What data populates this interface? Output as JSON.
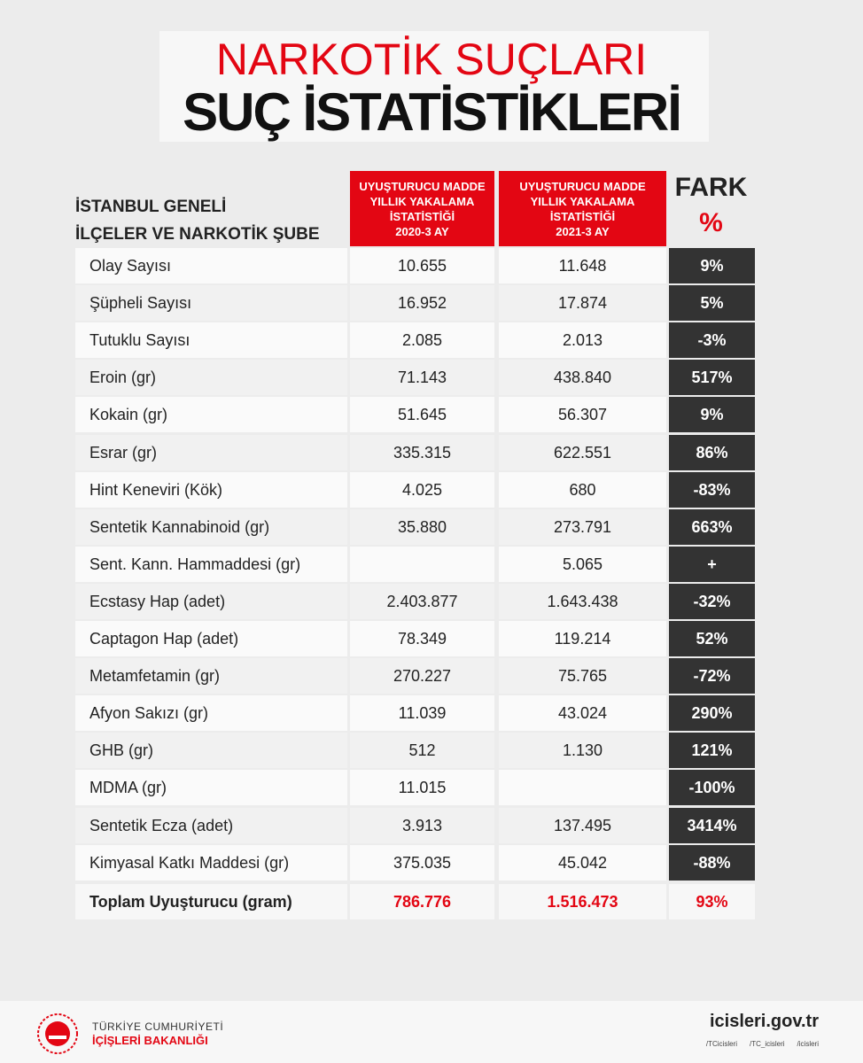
{
  "header": {
    "title": "NARKOTİK SUÇLARI",
    "subtitle": "SUÇ İSTATİSTİKLERİ"
  },
  "table": {
    "corner": [
      "İSTANBUL GENELİ",
      "İLÇELER VE NARKOTİK ŞUBE"
    ],
    "columns": [
      [
        "UYUŞTURUCU MADDE",
        "YILLIK YAKALAMA",
        "İSTATİSTİĞİ",
        "2020-3 AY"
      ],
      [
        "UYUŞTURUCU MADDE",
        "YILLIK YAKALAMA",
        "İSTATİSTİĞİ",
        "2021-3 AY"
      ],
      [
        "FARK",
        "%"
      ]
    ],
    "rows": [
      [
        "Olay Sayısı",
        "10.655",
        "11.648",
        "9%"
      ],
      [
        "Şüpheli Sayısı",
        "16.952",
        "17.874",
        "5%"
      ],
      [
        "Tutuklu Sayısı",
        "2.085",
        "2.013",
        "-3%"
      ],
      [
        "Eroin (gr)",
        "71.143",
        "438.840",
        "517%"
      ],
      [
        "Kokain (gr)",
        "51.645",
        "56.307",
        "9%"
      ],
      [
        "Esrar (gr)",
        "335.315",
        "622.551",
        "86%"
      ],
      [
        "Hint Keneviri (Kök)",
        "4.025",
        "680",
        "-83%"
      ],
      [
        "Sentetik Kannabinoid (gr)",
        "35.880",
        "273.791",
        "663%"
      ],
      [
        "Sent. Kann. Hammaddesi (gr)",
        null,
        "5.065",
        "+"
      ],
      [
        "Ecstasy Hap (adet)",
        "2.403.877",
        "1.643.438",
        "-32%"
      ],
      [
        "Captagon Hap (adet)",
        "78.349",
        "119.214",
        "52%"
      ],
      [
        "Metamfetamin (gr)",
        "270.227",
        "75.765",
        "-72%"
      ],
      [
        "Afyon Sakızı (gr)",
        "11.039",
        "43.024",
        "290%"
      ],
      [
        "GHB (gr)",
        "512",
        "1.130",
        "121%"
      ],
      [
        "MDMA (gr)",
        "11.015",
        null,
        "-100%"
      ],
      [
        "Sentetik Ecza (adet)",
        "3.913",
        "137.495",
        "3414%"
      ],
      [
        "Kimyasal Katkı Maddesi (gr)",
        "375.035",
        "45.042",
        "-88%"
      ]
    ],
    "total": [
      "Toplam Uyuşturucu (gram)",
      "786.776",
      "1.516.473",
      "93%"
    ]
  },
  "footer": {
    "org": [
      "TÜRKİYE CUMHURİYETİ",
      "İÇİŞLERİ BAKANLIĞI"
    ],
    "website": "icisleri.gov.tr",
    "social": [
      "/TCicisleri",
      "/TC_icisleri",
      "/icisleri"
    ]
  }
}
